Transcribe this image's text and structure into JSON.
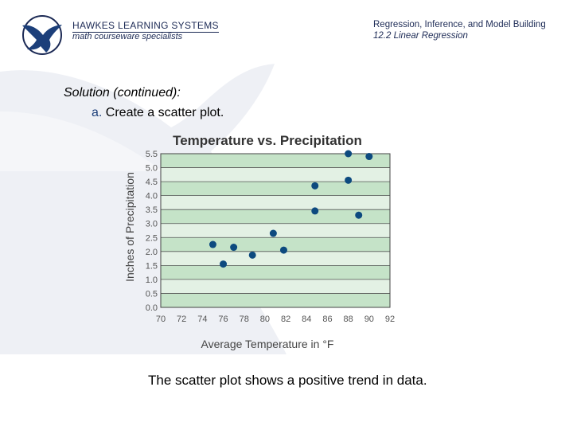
{
  "header": {
    "company": "HAWKES LEARNING SYSTEMS",
    "tagline": "math courseware specialists",
    "course": "Regression, Inference, and Model Building",
    "section": "12.2 Linear Regression"
  },
  "content": {
    "heading": "Solution (continued):",
    "step_letter": "a.",
    "step_text": "Create a scatter plot.",
    "caption": "The scatter plot shows a positive trend in data."
  },
  "colors": {
    "brand": "#1c2a55",
    "point": "#0d4a7f",
    "band_dark": "#c5e3c8",
    "band_light": "#e3f1e4"
  },
  "chart_data": {
    "type": "scatter",
    "title": "Temperature vs. Precipitation",
    "xlabel": "Average Temperature in °F",
    "ylabel": "Inches of Precipitation",
    "xlim": [
      70,
      92
    ],
    "ylim": [
      0,
      5.5
    ],
    "xticks": [
      "70",
      "72",
      "74",
      "76",
      "78",
      "80",
      "82",
      "84",
      "86",
      "88",
      "90",
      "92"
    ],
    "yticks": [
      "0.0",
      "0.5",
      "1.0",
      "1.5",
      "2.0",
      "2.5",
      "3.0",
      "3.5",
      "4.0",
      "4.5",
      "5.0",
      "5.5"
    ],
    "points": [
      {
        "x": 75,
        "y": 2.25
      },
      {
        "x": 76,
        "y": 1.55
      },
      {
        "x": 77,
        "y": 2.15
      },
      {
        "x": 78.8,
        "y": 1.87
      },
      {
        "x": 80.8,
        "y": 2.65
      },
      {
        "x": 81.8,
        "y": 2.05
      },
      {
        "x": 84.8,
        "y": 4.35
      },
      {
        "x": 84.8,
        "y": 3.45
      },
      {
        "x": 88,
        "y": 5.5
      },
      {
        "x": 88,
        "y": 4.55
      },
      {
        "x": 89,
        "y": 3.3
      },
      {
        "x": 90,
        "y": 5.4
      }
    ]
  }
}
